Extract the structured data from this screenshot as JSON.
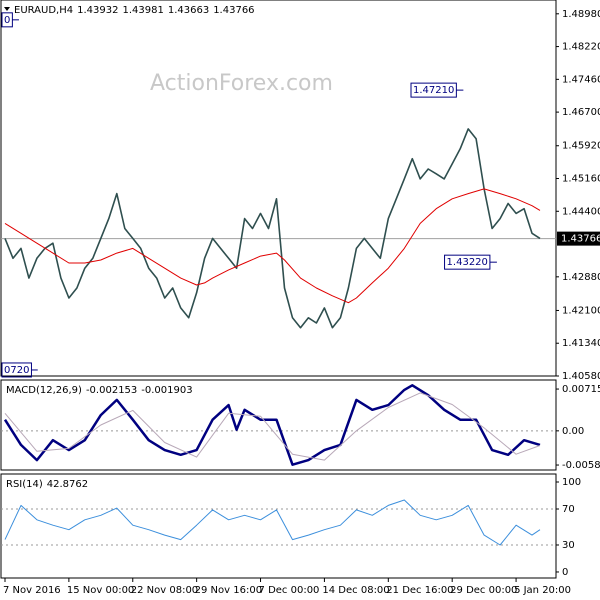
{
  "chart_data": [
    {
      "type": "line",
      "title": "EURAUD,H4",
      "quote": [
        1.43932,
        1.43981,
        1.43663,
        1.43766
      ],
      "watermark": "ActionForex.com",
      "xlim": [
        -0.5,
        69
      ],
      "xticks": [
        {
          "value": 0,
          "label": "7 Nov 2016"
        },
        {
          "value": 8,
          "label": "15 Nov 00:00"
        },
        {
          "value": 16,
          "label": "22 Nov 08:00"
        },
        {
          "value": 24,
          "label": "29 Nov 16:00"
        },
        {
          "value": 32,
          "label": "7 Dec 00:00"
        },
        {
          "value": 40,
          "label": "14 Dec 08:00"
        },
        {
          "value": 48,
          "label": "21 Dec 16:00"
        },
        {
          "value": 56,
          "label": "29 Dec 00:00"
        },
        {
          "value": 64,
          "label": "5 Jan 20:00"
        }
      ],
      "ylim": [
        1.4058,
        1.493
      ],
      "yticks": [
        {
          "value": 1.4898,
          "label": "1.48980"
        },
        {
          "value": 1.4822,
          "label": "1.48220"
        },
        {
          "value": 1.4746,
          "label": "1.47460"
        },
        {
          "value": 1.467,
          "label": "1.46700"
        },
        {
          "value": 1.4592,
          "label": "1.45920"
        },
        {
          "value": 1.4516,
          "label": "1.45160"
        },
        {
          "value": 1.444,
          "label": "1.44400"
        },
        {
          "value": 1.4288,
          "label": "1.42880"
        },
        {
          "value": 1.421,
          "label": "1.42100"
        },
        {
          "value": 1.4134,
          "label": "1.41340"
        },
        {
          "value": 1.4058,
          "label": "1.40580"
        }
      ],
      "last": {
        "value": 1.43766,
        "label": "1.43766"
      },
      "annotations": [
        {
          "x": 57.4,
          "value": 1.4721,
          "label": "1.47210"
        },
        {
          "x": 61.6,
          "value": 1.4322,
          "label": "1.43220"
        },
        {
          "x": 4.1,
          "value": 1.4072,
          "label": "0720"
        },
        {
          "x": 1.75,
          "value": 1.4884,
          "label": "0"
        }
      ],
      "series": [
        {
          "color": "#2f4f4f",
          "values": [
            1.4377,
            1.4331,
            1.4354,
            1.4285,
            1.4331,
            1.4354,
            1.4366,
            1.4285,
            1.4239,
            1.4262,
            1.4308,
            1.4331,
            1.4377,
            1.4423,
            1.4481,
            1.44,
            1.4377,
            1.4354,
            1.4308,
            1.4285,
            1.4239,
            1.4262,
            1.4216,
            1.4193,
            1.4251,
            1.4331,
            1.4377,
            1.4354,
            1.4331,
            1.4308,
            1.4423,
            1.44,
            1.4435,
            1.44,
            1.4469,
            1.4262,
            1.4193,
            1.417,
            1.4193,
            1.4181,
            1.4216,
            1.417,
            1.4193,
            1.4262,
            1.4354,
            1.4377,
            1.4354,
            1.4331,
            1.4423,
            1.4469,
            1.4515,
            1.4562,
            1.4515,
            1.4538,
            1.4527,
            1.4515,
            1.455,
            1.4585,
            1.4631,
            1.4608,
            1.4492,
            1.44,
            1.4423,
            1.4458,
            1.4435,
            1.4446,
            1.4389,
            1.4377
          ]
        },
        {
          "color": "#e00000",
          "x": [
            0,
            2,
            4,
            6,
            8,
            10,
            12,
            14,
            16,
            18,
            20,
            22,
            24,
            25,
            26,
            28,
            30,
            32,
            34,
            35,
            37,
            39,
            41,
            43,
            44,
            46,
            48,
            50,
            52,
            54,
            56,
            58,
            60,
            62,
            64,
            66,
            67
          ],
          "values": [
            1.4412,
            1.4389,
            1.4366,
            1.4343,
            1.432,
            1.432,
            1.4327,
            1.4343,
            1.4354,
            1.4331,
            1.4308,
            1.4285,
            1.4269,
            1.4274,
            1.4285,
            1.4304,
            1.432,
            1.4336,
            1.4343,
            1.4327,
            1.4285,
            1.4262,
            1.4244,
            1.4228,
            1.4239,
            1.4274,
            1.4308,
            1.4354,
            1.4412,
            1.4446,
            1.4469,
            1.4481,
            1.4492,
            1.4481,
            1.4469,
            1.4453,
            1.4442
          ]
        }
      ]
    },
    {
      "type": "line",
      "title": "MACD(12,26,9)",
      "readout": [
        -0.002153,
        -0.001903
      ],
      "ylim": [
        -0.0067,
        0.0087
      ],
      "yticks": [
        0.007152,
        {
          "value": 0,
          "label": "0.00"
        },
        -0.00585
      ],
      "levels": [
        0
      ],
      "series": [
        {
          "color": "#000080",
          "x": [
            0,
            2,
            4,
            6,
            8,
            10,
            12,
            14,
            16,
            18,
            20,
            22,
            24,
            26,
            28,
            29,
            30,
            32,
            34,
            36,
            38,
            40,
            42,
            44,
            46,
            48,
            50,
            51,
            53,
            55,
            57,
            59,
            61,
            63,
            65,
            67
          ],
          "values": [
            0.0019,
            -0.0024,
            -0.005,
            -0.0016,
            -0.0033,
            -0.0016,
            0.0027,
            0.0053,
            0.0019,
            -0.0016,
            -0.0033,
            -0.0041,
            -0.0033,
            0.0019,
            0.0044,
            0.0002,
            0.0036,
            0.0019,
            0.0019,
            -0.0058,
            -0.005,
            -0.0033,
            -0.0024,
            0.0053,
            0.0036,
            0.0044,
            0.007,
            0.0078,
            0.0061,
            0.0036,
            0.0019,
            0.0019,
            -0.0033,
            -0.0041,
            -0.0016,
            -0.0024
          ]
        },
        {
          "color": "#b8a8b8",
          "x": [
            0,
            4,
            8,
            12,
            16,
            20,
            24,
            28,
            32,
            36,
            40,
            44,
            48,
            52,
            56,
            60,
            64,
            67
          ],
          "values": [
            0.003,
            -0.0035,
            -0.003,
            0.001,
            0.0035,
            -0.002,
            -0.0045,
            0.003,
            0.0025,
            -0.004,
            -0.005,
            0.0,
            0.004,
            0.0065,
            0.0045,
            0.0005,
            -0.004,
            -0.0025
          ]
        }
      ]
    },
    {
      "type": "line",
      "title": "RSI(14)",
      "readout": 42.8762,
      "ylim": [
        -6.7,
        108.9
      ],
      "yticks": [
        100,
        70,
        30,
        0
      ],
      "levels": [
        70,
        30
      ],
      "series": [
        {
          "color": "#3c8fdc",
          "x": [
            0,
            2,
            4,
            6,
            8,
            10,
            12,
            14,
            16,
            18,
            20,
            22,
            24,
            26,
            28,
            30,
            32,
            34,
            36,
            38,
            40,
            42,
            44,
            46,
            48,
            50,
            52,
            54,
            56,
            58,
            60,
            62,
            64,
            66,
            67
          ],
          "values": [
            36,
            74,
            58,
            52,
            47,
            58,
            63,
            71,
            52,
            47,
            41,
            36,
            52,
            69,
            58,
            63,
            58,
            69,
            36,
            41,
            47,
            52,
            69,
            63,
            74,
            80,
            63,
            58,
            63,
            74,
            41,
            30,
            52,
            41,
            47
          ]
        }
      ]
    }
  ]
}
